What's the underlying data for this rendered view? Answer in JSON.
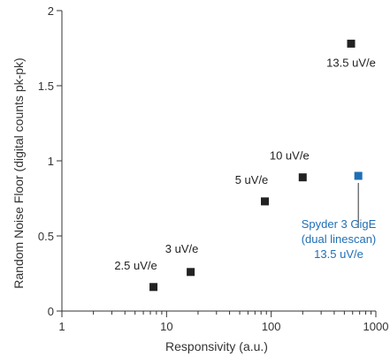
{
  "chart_data": {
    "type": "scatter",
    "xlabel": "Responsivity (a.u.)",
    "ylabel": "Random Noise Floor (digital counts pk-pk)",
    "x_scale": "log",
    "xlim": [
      1,
      1000
    ],
    "ylim": [
      0,
      2
    ],
    "x_ticks": [
      1,
      10,
      100,
      1000
    ],
    "x_tick_labels": [
      "1",
      "10",
      "100",
      "1000"
    ],
    "y_ticks": [
      0,
      0.5,
      1,
      1.5,
      2
    ],
    "y_tick_labels": [
      "0",
      "0.5",
      "1",
      "1.5",
      "2"
    ],
    "grid": false,
    "points": [
      {
        "x": 7.5,
        "y": 0.16,
        "label": "2.5 uV/e"
      },
      {
        "x": 17,
        "y": 0.26,
        "label": "3 uV/e"
      },
      {
        "x": 87,
        "y": 0.73,
        "label": "5 uV/e"
      },
      {
        "x": 200,
        "y": 0.89,
        "label": "10 uV/e"
      },
      {
        "x": 580,
        "y": 1.78,
        "label": "13.5 uV/e"
      }
    ],
    "highlight": {
      "x": 680,
      "y": 0.9,
      "label_lines": [
        "Spyder 3 GigE",
        "(dual linescan)",
        "13.5 uV/e"
      ],
      "color": "#1f6fb5"
    },
    "point_color": "#222222"
  }
}
